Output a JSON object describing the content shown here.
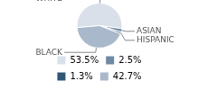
{
  "chart_data": {
    "type": "pie",
    "categories": [
      "WHITE",
      "ASIAN",
      "HISPANIC",
      "BLACK"
    ],
    "values": [
      53.5,
      2.5,
      1.3,
      42.7
    ],
    "value_labels": [
      "53.5%",
      "2.5%",
      "1.3%",
      "42.7%"
    ],
    "colors": [
      "#d9e0e9",
      "#6f89a4",
      "#2f5577",
      "#a9b8ca"
    ],
    "legend": "bottom"
  }
}
